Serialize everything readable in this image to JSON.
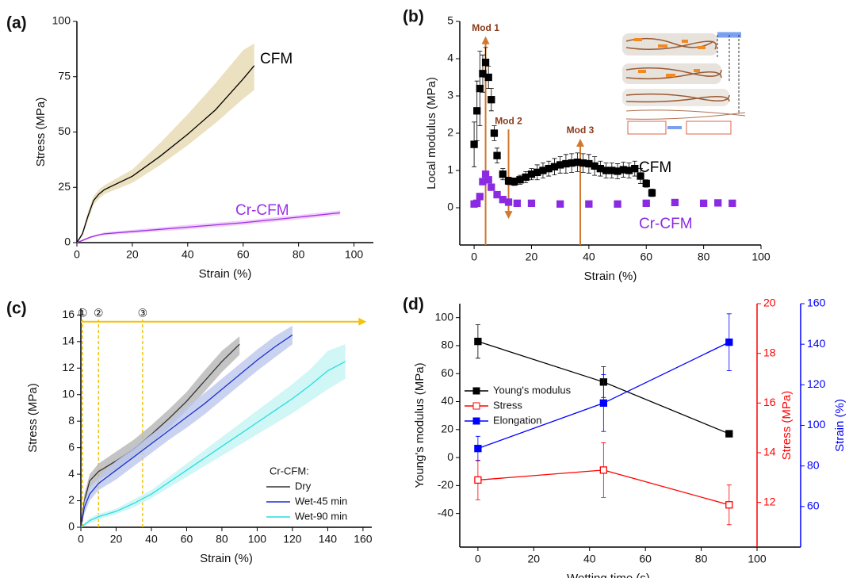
{
  "chart_data": [
    {
      "type": "line",
      "panel": "(a)",
      "x_label": "Strain (%)",
      "y_label": "Stress (MPa)",
      "xlim": [
        0,
        107
      ],
      "ylim": [
        0,
        100
      ],
      "xticks": [
        0,
        20,
        40,
        60,
        80,
        100
      ],
      "yticks": [
        0,
        25,
        50,
        75,
        100
      ],
      "direct_labels": true,
      "series": [
        {
          "name": "CFM",
          "color": "#000000",
          "band_color": "#e6d9b0",
          "x": [
            0,
            2,
            4,
            6,
            8,
            10,
            20,
            30,
            40,
            50,
            60,
            64
          ],
          "values": [
            0,
            4,
            12,
            19,
            22,
            24,
            30,
            39,
            49,
            60,
            74,
            80
          ],
          "lower": [
            0,
            3,
            10,
            17,
            20,
            22,
            27,
            35,
            44,
            54,
            65,
            69
          ],
          "upper": [
            0,
            5,
            14,
            21,
            24,
            26,
            33,
            45,
            58,
            72,
            87,
            90
          ]
        },
        {
          "name": "Cr-CFM",
          "color": "#9b30e8",
          "band_color": "#efc3f7",
          "x": [
            0,
            2,
            5,
            8,
            10,
            20,
            40,
            60,
            80,
            95
          ],
          "values": [
            0,
            1,
            2.5,
            3.5,
            4,
            5,
            7,
            9,
            11.5,
            13.5
          ],
          "lower": [
            0,
            0.5,
            2,
            3,
            3.3,
            4.2,
            6,
            8,
            10.5,
            12.5
          ],
          "upper": [
            0,
            1.5,
            3,
            4,
            4.7,
            5.8,
            8,
            10,
            12.5,
            14.5
          ]
        }
      ]
    },
    {
      "type": "scatter",
      "panel": "(b)",
      "x_label": "Strain (%)",
      "y_label": "Local modulus (MPa)",
      "xlim": [
        -5,
        100
      ],
      "ylim": [
        -1,
        5
      ],
      "xticks": [
        0,
        20,
        40,
        60,
        80,
        100
      ],
      "yticks": [
        0,
        1,
        2,
        3,
        4,
        5
      ],
      "direct_labels": true,
      "annotation_color": "#d2782e",
      "annotation_text_color": "#8b3a1a",
      "annotations": [
        {
          "text": "Mod 1",
          "x": 4,
          "from": -1,
          "to": 4.6
        },
        {
          "text": "Mod 2",
          "x": 12,
          "from": 2.1,
          "to": -0.3
        },
        {
          "text": "Mod 3",
          "x": 37,
          "from": -1,
          "to": 1.85
        }
      ],
      "series": [
        {
          "name": "CFM",
          "color": "#000000",
          "x": [
            0,
            1,
            2,
            3,
            4,
            5,
            6,
            7,
            8,
            10,
            12,
            14,
            16,
            18,
            20,
            22,
            24,
            26,
            28,
            30,
            32,
            34,
            36,
            38,
            40,
            42,
            44,
            46,
            48,
            50,
            52,
            54,
            56,
            58,
            60,
            62
          ],
          "values": [
            1.7,
            2.6,
            3.2,
            3.6,
            3.9,
            3.5,
            2.9,
            2.0,
            1.4,
            0.9,
            0.72,
            0.7,
            0.75,
            0.82,
            0.9,
            0.95,
            1.0,
            1.05,
            1.1,
            1.15,
            1.18,
            1.2,
            1.22,
            1.2,
            1.18,
            1.12,
            1.05,
            1.0,
            1.0,
            0.98,
            1.02,
            1.0,
            1.05,
            0.85,
            0.65,
            0.4
          ],
          "errors": [
            0.6,
            0.8,
            1.0,
            0.5,
            0.4,
            0.3,
            0.3,
            0.2,
            0.2,
            0.15,
            0.1,
            0.1,
            0.12,
            0.15,
            0.15,
            0.2,
            0.2,
            0.2,
            0.22,
            0.22,
            0.25,
            0.25,
            0.25,
            0.25,
            0.25,
            0.25,
            0.2,
            0.2,
            0.2,
            0.2,
            0.2,
            0.2,
            0.2,
            0.2,
            0.1,
            0.1
          ]
        },
        {
          "name": "Cr-CFM",
          "color": "#8a2be2",
          "x": [
            0,
            1,
            2,
            3,
            4,
            5,
            6,
            8,
            10,
            12,
            15,
            20,
            30,
            40,
            50,
            60,
            70,
            80,
            85,
            90
          ],
          "values": [
            0.1,
            0.12,
            0.3,
            0.7,
            0.9,
            0.75,
            0.55,
            0.35,
            0.22,
            0.15,
            0.12,
            0.12,
            0.1,
            0.1,
            0.1,
            0.12,
            0.14,
            0.12,
            0.13,
            0.12
          ]
        }
      ]
    },
    {
      "type": "line",
      "panel": "(c)",
      "x_label": "Strain (%)",
      "y_label": "Stress (MPa)",
      "xlim": [
        0,
        165
      ],
      "ylim": [
        0,
        16.5
      ],
      "xticks": [
        0,
        20,
        40,
        60,
        80,
        100,
        120,
        140,
        160
      ],
      "yticks": [
        0,
        2,
        4,
        6,
        8,
        10,
        12,
        14,
        16
      ],
      "legend": "lower right",
      "legend_title": "Cr-CFM:",
      "guides": {
        "x": [
          1,
          10,
          35
        ],
        "labels": [
          "①",
          "②",
          "③"
        ],
        "y": 15.5,
        "x_end": 162,
        "color": "#f2c40f"
      },
      "series": [
        {
          "name": "Dry",
          "color": "#333333",
          "band_color": "#b5b5b5",
          "x": [
            0,
            2,
            5,
            10,
            20,
            30,
            40,
            50,
            60,
            70,
            80,
            90
          ],
          "values": [
            0,
            2,
            3.5,
            4.2,
            5,
            5.9,
            7,
            8.2,
            9.5,
            11,
            12.5,
            13.8
          ],
          "lower": [
            0,
            1.5,
            3,
            3.6,
            4.3,
            5.2,
            6.3,
            7.5,
            8.8,
            10.2,
            11.7,
            13
          ],
          "upper": [
            0,
            2.5,
            4,
            4.8,
            5.7,
            6.6,
            7.7,
            8.9,
            10.2,
            11.8,
            13.3,
            14.4
          ]
        },
        {
          "name": "Wet-45 min",
          "color": "#1f2fd0",
          "band_color": "#bcc8ec",
          "x": [
            0,
            2,
            5,
            10,
            20,
            30,
            40,
            50,
            60,
            70,
            80,
            90,
            100,
            110,
            120
          ],
          "values": [
            0,
            1.5,
            2.5,
            3.3,
            4.3,
            5.3,
            6.3,
            7.3,
            8.3,
            9.3,
            10.4,
            11.5,
            12.6,
            13.6,
            14.5
          ],
          "lower": [
            0,
            1,
            2,
            2.8,
            3.6,
            4.6,
            5.6,
            6.6,
            7.5,
            8.5,
            9.6,
            10.7,
            11.8,
            12.8,
            13.8
          ],
          "upper": [
            0,
            2,
            3,
            3.8,
            5,
            6,
            7,
            8,
            9.1,
            10.1,
            11.2,
            12.3,
            13.4,
            14.4,
            15.2
          ]
        },
        {
          "name": "Wet-90 min",
          "color": "#27dede",
          "band_color": "#c4f4f4",
          "x": [
            0,
            5,
            10,
            20,
            30,
            40,
            50,
            60,
            70,
            80,
            90,
            100,
            110,
            120,
            130,
            140,
            150
          ],
          "values": [
            0,
            0.5,
            0.8,
            1.2,
            1.8,
            2.5,
            3.4,
            4.3,
            5.2,
            6.1,
            7,
            7.9,
            8.8,
            9.7,
            10.7,
            11.8,
            12.5
          ],
          "lower": [
            0,
            0.3,
            0.6,
            1,
            1.5,
            2.2,
            3,
            3.8,
            4.6,
            5.4,
            6.2,
            7,
            7.8,
            8.6,
            9.5,
            10.4,
            11.2
          ],
          "upper": [
            0,
            0.7,
            1,
            1.4,
            2.1,
            2.8,
            3.8,
            4.8,
            5.8,
            6.8,
            7.8,
            8.8,
            9.8,
            10.8,
            11.9,
            13.3,
            13.8
          ]
        }
      ]
    },
    {
      "type": "line",
      "panel": "(d)",
      "x_label": "Wetting time (s)",
      "y_label": "Young's modulus (MPa)",
      "y2_label": "Stress (MPa)",
      "y3_label": "Strain (%)",
      "xlim": [
        -6.5,
        100
      ],
      "ylim": [
        -64,
        110
      ],
      "y2lim": [
        10.2,
        20
      ],
      "y3lim": [
        40,
        160
      ],
      "xticks": [
        0,
        20,
        40,
        60,
        80,
        100
      ],
      "yticks": [
        -40,
        -20,
        0,
        20,
        40,
        60,
        80,
        100
      ],
      "y2ticks": [
        12,
        14,
        16,
        18,
        20
      ],
      "y3ticks": [
        60,
        80,
        100,
        120,
        140,
        160
      ],
      "legend": "center left",
      "series": [
        {
          "name": "Young's modulus",
          "color": "#000000",
          "marker": "square",
          "x": [
            0,
            45,
            90
          ],
          "values": [
            83,
            54,
            17
          ],
          "errors": [
            12,
            11,
            2
          ]
        },
        {
          "name": "Stress",
          "color": "#ff0000",
          "marker": "open-square",
          "axis": "y2",
          "x": [
            0,
            45,
            90
          ],
          "values": [
            12.9,
            13.3,
            11.9
          ],
          "errors": [
            0.8,
            1.1,
            0.8
          ]
        },
        {
          "name": "Elongation",
          "color": "#0000ff",
          "marker": "square",
          "axis": "y3",
          "x": [
            0,
            45,
            90
          ],
          "values": [
            88.6,
            111,
            141
          ],
          "errors": [
            6,
            14,
            14
          ]
        }
      ]
    }
  ]
}
